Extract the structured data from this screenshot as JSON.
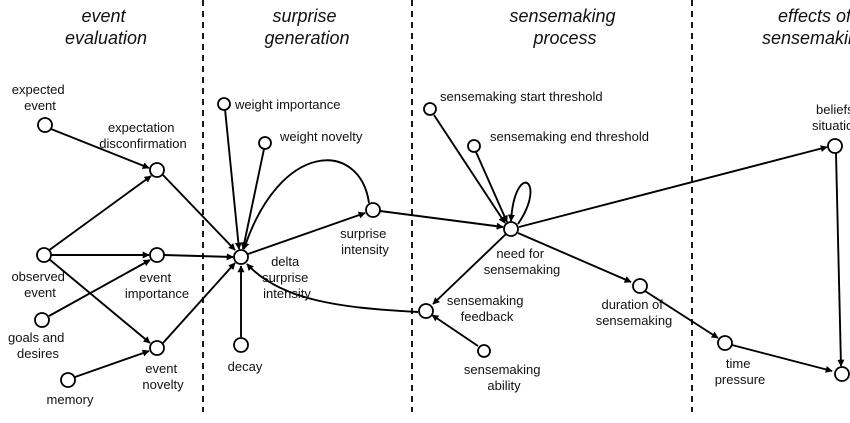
{
  "headers": {
    "event_evaluation": [
      "event",
      "evaluation"
    ],
    "surprise_generation": [
      "surprise",
      "generation"
    ],
    "sensemaking_process": [
      "sensemaking",
      "process"
    ],
    "effects_of_sensemaking": [
      "effects of",
      "sensemaking"
    ]
  },
  "nodes": {
    "expected_event": [
      "expected",
      "event"
    ],
    "expectation_disconfirmation": [
      "expectation",
      "disconfirmation"
    ],
    "observed_event": [
      "observed",
      "event"
    ],
    "event_importance": [
      "event",
      "importance"
    ],
    "goals_and_desires": [
      "goals and",
      "desires"
    ],
    "event_novelty": [
      "event",
      "novelty"
    ],
    "memory": [
      "memory"
    ],
    "weight_importance": [
      "weight importance"
    ],
    "weight_novelty": [
      "weight novelty"
    ],
    "delta_surprise_intensity": [
      "delta",
      "surprise",
      "intensity"
    ],
    "surprise_intensity": [
      "surprise",
      "intensity"
    ],
    "decay": [
      "decay"
    ],
    "sensemaking_start_threshold": [
      "sensemaking start threshold"
    ],
    "sensemaking_end_threshold": [
      "sensemaking end threshold"
    ],
    "need_for_sensemaking": [
      "need for",
      "sensemaking"
    ],
    "sensemaking_feedback": [
      "sensemaking",
      "feedback"
    ],
    "sensemaking_ability": [
      "sensemaking",
      "ability"
    ],
    "duration_of_sensemaking": [
      "duration of",
      "sensemaking"
    ],
    "beliefs_situation": [
      "beliefs",
      "situation"
    ],
    "time_pressure": [
      "time",
      "pressure"
    ],
    "out_node": []
  }
}
